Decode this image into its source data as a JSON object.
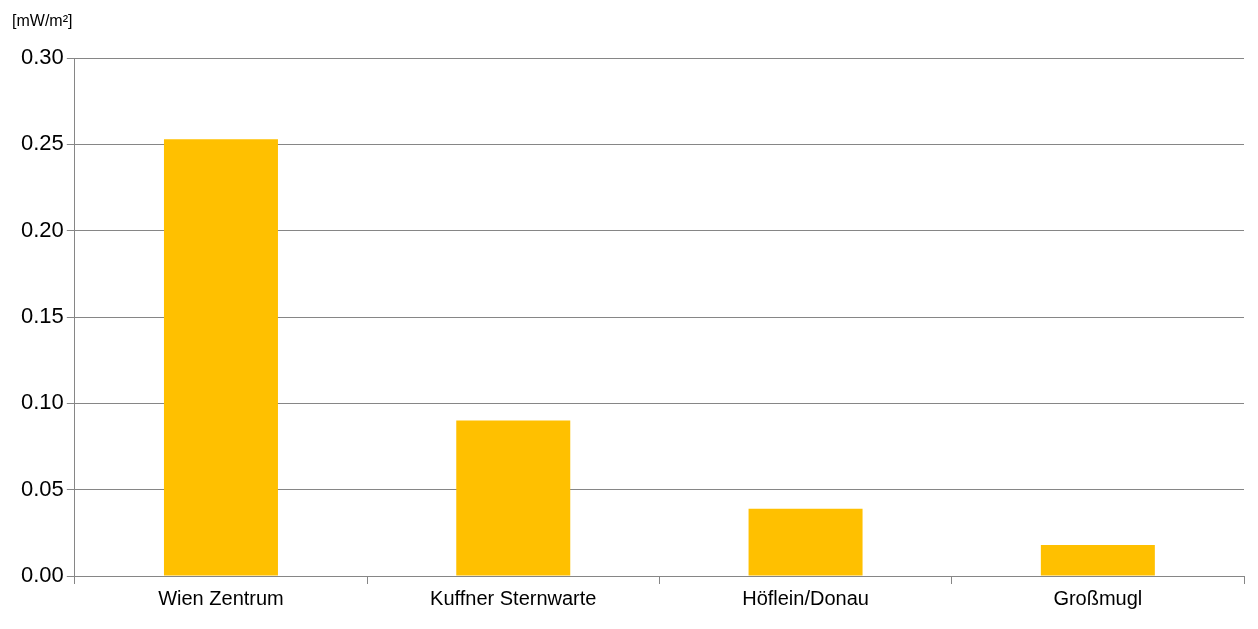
{
  "chart_data": {
    "type": "bar",
    "ylabel": "[mW/m²]",
    "categories": [
      "Wien Zentrum",
      "Kuffner Sternwarte",
      "Höflein/Donau",
      "Großmugl"
    ],
    "values": [
      0.253,
      0.09,
      0.039,
      0.018
    ],
    "color": "#ffc000",
    "ylim": [
      0,
      0.3
    ],
    "yticks": [
      {
        "value": 0,
        "label": "0.00"
      },
      {
        "value": 0.05,
        "label": "0.05"
      },
      {
        "value": 0.1,
        "label": "0.10"
      },
      {
        "value": 0.15,
        "label": "0.15"
      },
      {
        "value": 0.2,
        "label": "0.20"
      },
      {
        "value": 0.25,
        "label": "0.25"
      },
      {
        "value": 0.3,
        "label": "0.30"
      }
    ],
    "grid": "y",
    "legend": false
  }
}
